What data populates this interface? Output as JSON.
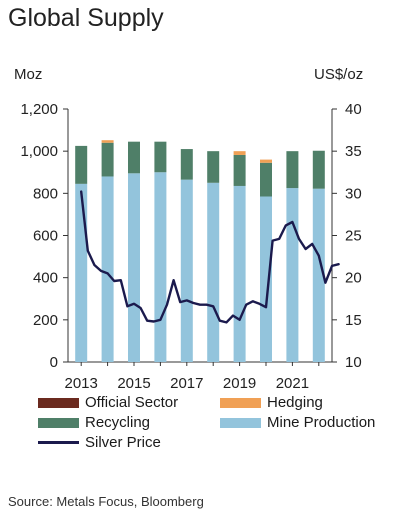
{
  "title": "Global Supply",
  "units": {
    "left": "Moz",
    "right": "US$/oz"
  },
  "source": "Source: Metals Focus, Bloomberg",
  "legend": [
    {
      "key": "official_sector",
      "label": "Official Sector",
      "kind": "swatch"
    },
    {
      "key": "hedging",
      "label": "Hedging",
      "kind": "swatch"
    },
    {
      "key": "recycling",
      "label": "Recycling",
      "kind": "swatch"
    },
    {
      "key": "mine_production",
      "label": "Mine Production",
      "kind": "swatch"
    },
    {
      "key": "silver_price",
      "label": "Silver Price",
      "kind": "line"
    }
  ],
  "colors": {
    "official_sector": "#6b2a1f",
    "hedging": "#f0a055",
    "recycling": "#4f7f68",
    "mine_production": "#93c4dc",
    "silver_price": "#1b1a4d"
  },
  "chart_data": {
    "type": "bar",
    "stacked": true,
    "categories": [
      "2013",
      "2014",
      "2015",
      "2016",
      "2017",
      "2018",
      "2019",
      "2020",
      "2021",
      "2022"
    ],
    "x_tick_labels": [
      "2013",
      "2015",
      "2017",
      "2019",
      "2021"
    ],
    "series": [
      {
        "name": "Official Sector",
        "key": "official_sector",
        "values": [
          0,
          0,
          0,
          0,
          0,
          0,
          0,
          0,
          0,
          0
        ]
      },
      {
        "name": "Hedging",
        "key": "hedging",
        "values": [
          0,
          12,
          0,
          0,
          0,
          0,
          18,
          15,
          0,
          0
        ]
      },
      {
        "name": "Recycling",
        "key": "recycling",
        "values": [
          180,
          160,
          150,
          145,
          145,
          150,
          147,
          160,
          175,
          180
        ]
      },
      {
        "name": "Mine Production",
        "key": "mine_production",
        "values": [
          845,
          880,
          895,
          900,
          865,
          850,
          835,
          785,
          825,
          822
        ]
      }
    ],
    "y_left": {
      "ylim": [
        0,
        1200
      ],
      "ticks": [
        "0",
        "200",
        "400",
        "600",
        "800",
        "1,000",
        "1,200"
      ],
      "tick_values": [
        0,
        200,
        400,
        600,
        800,
        1000,
        1200
      ]
    },
    "y_right": {
      "ylim": [
        10,
        40
      ],
      "ticks": [
        "10",
        "15",
        "20",
        "25",
        "30",
        "35",
        "40"
      ],
      "tick_values": [
        10,
        15,
        20,
        25,
        30,
        35,
        40
      ]
    },
    "line": {
      "name": "Silver Price",
      "key": "silver_price",
      "axis": "right",
      "x": [
        2013.0,
        2013.25,
        2013.5,
        2013.75,
        2014.0,
        2014.25,
        2014.5,
        2014.75,
        2015.0,
        2015.25,
        2015.5,
        2015.75,
        2016.0,
        2016.25,
        2016.5,
        2016.75,
        2017.0,
        2017.25,
        2017.5,
        2017.75,
        2018.0,
        2018.25,
        2018.5,
        2018.75,
        2019.0,
        2019.25,
        2019.5,
        2019.75,
        2020.0,
        2020.25,
        2020.5,
        2020.75,
        2021.0,
        2021.25,
        2021.5,
        2021.75,
        2022.0,
        2022.25,
        2022.5,
        2022.75
      ],
      "y": [
        30.2,
        23.2,
        21.5,
        20.8,
        20.5,
        19.6,
        19.7,
        16.6,
        16.9,
        16.4,
        14.9,
        14.8,
        15.0,
        16.8,
        19.7,
        17.1,
        17.3,
        17.0,
        16.8,
        16.8,
        16.6,
        14.9,
        14.7,
        15.5,
        15.0,
        16.8,
        17.2,
        16.9,
        16.5,
        24.4,
        24.6,
        26.2,
        26.6,
        24.6,
        23.4,
        24.0,
        22.6,
        19.4,
        21.4,
        21.6
      ]
    }
  }
}
